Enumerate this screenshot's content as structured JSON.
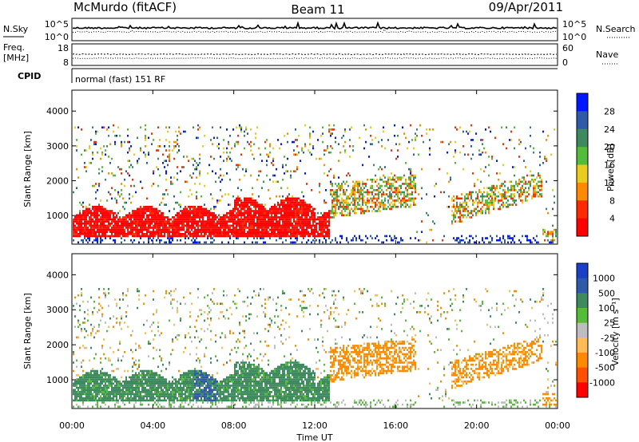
{
  "header": {
    "station": "McMurdo (fitACF)",
    "beam": "Beam 11",
    "date": "09/Apr/2011"
  },
  "noise_panel": {
    "left_label": "N.Sky",
    "right_label": "N.Search",
    "left_ticks": [
      "10^5",
      "10^0"
    ],
    "right_ticks": [
      "10^5",
      "10^0"
    ]
  },
  "freq_panel": {
    "left_label_1": "Freq.",
    "left_label_2": "[MHz]",
    "right_label": "Nave",
    "left_ticks": [
      "18",
      "8"
    ],
    "right_ticks": [
      "60",
      "0"
    ]
  },
  "cpid_panel": {
    "label": "CPID",
    "text": "normal (fast) 151 RF"
  },
  "chart_data": [
    {
      "type": "heatmap",
      "name": "power",
      "ylabel": "Slant Range [km]",
      "yticks": [
        "1000",
        "2000",
        "3000",
        "4000"
      ],
      "ylim": [
        180,
        4600
      ],
      "xlim_hours": [
        0,
        24
      ],
      "colorbar_label": "Power [dB]",
      "colorbar_ticks": [
        "4",
        "8",
        "12",
        "16",
        "20",
        "24",
        "28"
      ],
      "colorbar_colors": [
        "#0018ff",
        "#2f5aa8",
        "#3d8a5e",
        "#55bb3a",
        "#e8cc1e",
        "#ff8a00",
        "#ff2a00",
        "#ff0000"
      ]
    },
    {
      "type": "heatmap",
      "name": "velocity",
      "ylabel": "Slant Range [km]",
      "yticks": [
        "1000",
        "2000",
        "3000",
        "4000"
      ],
      "ylim": [
        180,
        4600
      ],
      "xlim_hours": [
        0,
        24
      ],
      "colorbar_label": "Velocity [m s⁻¹]",
      "colorbar_ticks": [
        "1000",
        "500",
        "100",
        "25",
        "-25",
        "-100",
        "-500",
        "-1000"
      ],
      "colorbar_colors": [
        "#1a3fc8",
        "#2f5aa8",
        "#3d8a5e",
        "#55bb3a",
        "#bdbdbd",
        "#ffbb55",
        "#ff8a00",
        "#ff5000",
        "#ff0000"
      ]
    }
  ],
  "xaxis": {
    "ticks": [
      "00:00",
      "04:00",
      "08:00",
      "12:00",
      "16:00",
      "20:00",
      "00:00"
    ],
    "label": "Time UT"
  }
}
